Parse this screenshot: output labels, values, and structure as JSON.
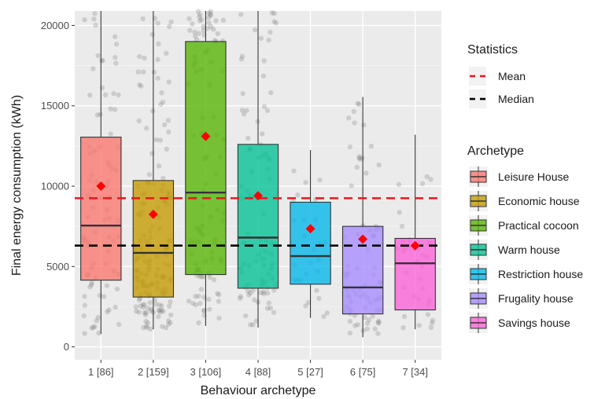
{
  "chart_data": {
    "type": "box",
    "xlabel": "Behaviour archetype",
    "ylabel": "Final energy consumption (kWh)",
    "ylim": [
      -800,
      20900
    ],
    "yticks": [
      0,
      5000,
      10000,
      15000,
      20000
    ],
    "yticklabels": [
      "0",
      "5000",
      "10000",
      "15000",
      "20000"
    ],
    "grid": true,
    "legend_position": "right",
    "categories": [
      "1 [86]",
      "2 [159]",
      "3 [106]",
      "4 [88]",
      "5 [27]",
      "6 [75]",
      "7 [34]"
    ],
    "boxes": [
      {
        "archetype": "Leisure House",
        "color": "#F8766D",
        "min": 800,
        "q1": 4150,
        "median": 7550,
        "q3": 13050,
        "max": 20900,
        "mean": 10000
      },
      {
        "archetype": "Economic house",
        "color": "#C49A00",
        "min": 1100,
        "q1": 3100,
        "median": 5850,
        "q3": 10350,
        "max": 20900,
        "mean": 8250
      },
      {
        "archetype": "Practical cocoon",
        "color": "#53B400",
        "min": 1300,
        "q1": 4500,
        "median": 9600,
        "q3": 19000,
        "max": 20900,
        "mean": 13100
      },
      {
        "archetype": "Warm house",
        "color": "#00C094",
        "min": 1200,
        "q1": 3650,
        "median": 6800,
        "q3": 12600,
        "max": 20900,
        "mean": 9400
      },
      {
        "archetype": "Restriction house",
        "color": "#00B6EB",
        "min": 1800,
        "q1": 3900,
        "median": 5650,
        "q3": 9000,
        "max": 12250,
        "mean": 7350
      },
      {
        "archetype": "Frugality house",
        "color": "#A58AFF",
        "min": 600,
        "q1": 2050,
        "median": 3700,
        "q3": 7500,
        "max": 15550,
        "mean": 6700
      },
      {
        "archetype": "Savings house",
        "color": "#FB61D7",
        "min": 1100,
        "q1": 2300,
        "median": 5200,
        "q3": 6750,
        "max": 13200,
        "mean": 6300
      }
    ],
    "reference_lines": [
      {
        "name": "Mean",
        "value": 9250,
        "color": "#e41a1c",
        "style": "dashed"
      },
      {
        "name": "Median",
        "value": 6300,
        "color": "#000000",
        "style": "dashed"
      }
    ],
    "mean_marker_color": "#ff0000",
    "legend": {
      "statistics_title": "Statistics",
      "statistics": [
        "Mean",
        "Median"
      ],
      "archetype_title": "Archetype",
      "archetypes": [
        "Leisure House",
        "Economic house",
        "Practical cocoon",
        "Warm house",
        "Restriction house",
        "Frugality house",
        "Savings house"
      ]
    }
  }
}
